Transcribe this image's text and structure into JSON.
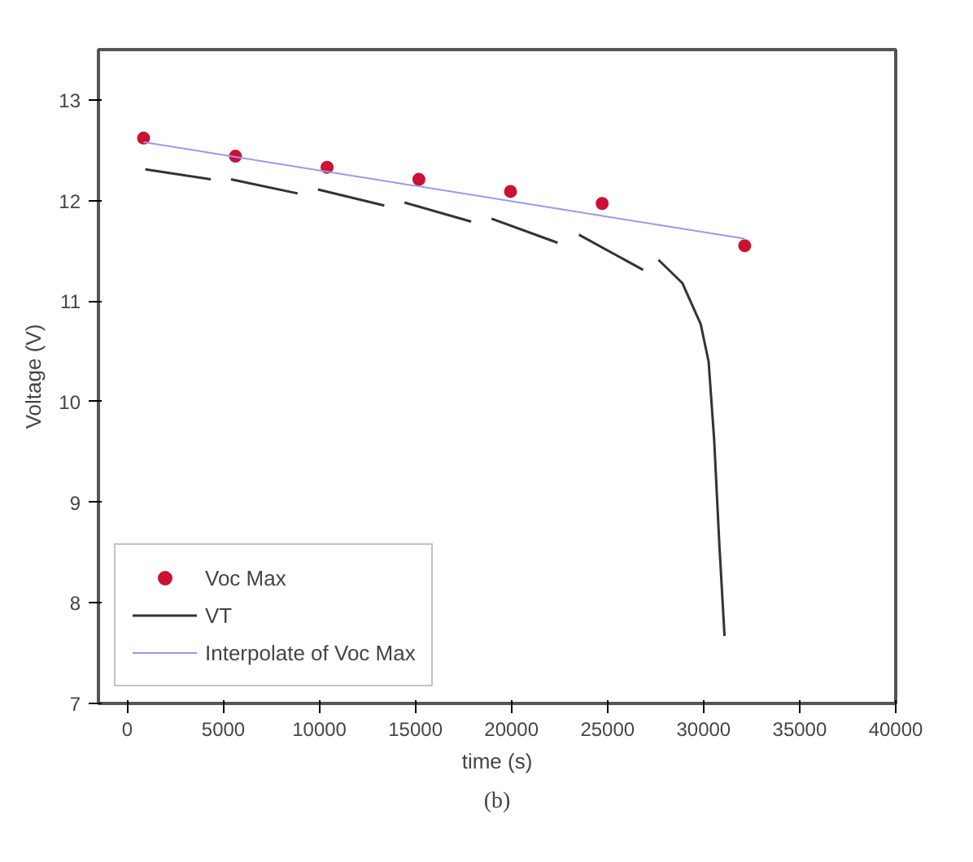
{
  "chart_data": {
    "type": "line",
    "xlabel": "time (s)",
    "ylabel": "Voltage (V)",
    "xlim": [
      -1500,
      40000
    ],
    "ylim": [
      7,
      13.5
    ],
    "xticks": [
      0,
      5000,
      10000,
      15000,
      20000,
      25000,
      30000,
      35000,
      40000
    ],
    "yticks": [
      7,
      8,
      9,
      10,
      11,
      12,
      13
    ],
    "grid": false,
    "legend": "bottom left",
    "annotations": [
      "(b)"
    ],
    "series": [
      {
        "name": "Voc Max",
        "type": "scatter",
        "marker": "circle",
        "color": "#cc1133",
        "x": [
          850,
          5630,
          10400,
          15180,
          19950,
          24720,
          32140
        ],
        "values": [
          12.62,
          12.44,
          12.33,
          12.21,
          12.09,
          11.97,
          11.55
        ]
      },
      {
        "name": "VT",
        "marker": "none",
        "color": "#333333",
        "x": [
          940,
          4350,
          4400,
          5400,
          8870,
          8900,
          9930,
          13380,
          13400,
          14430,
          17900,
          17950,
          18960,
          22400,
          22450,
          23510,
          26850,
          26900,
          27650,
          28890,
          29850,
          30260,
          30550,
          30820,
          31090
        ],
        "values": [
          12.31,
          12.21,
          null,
          12.21,
          12.07,
          null,
          12.11,
          11.95,
          null,
          11.98,
          11.79,
          null,
          11.82,
          11.58,
          null,
          11.66,
          11.31,
          null,
          11.41,
          11.18,
          10.77,
          10.4,
          9.62,
          8.58,
          7.67
        ]
      },
      {
        "name": "Interpolate of Voc Max",
        "marker": "none",
        "color": "#9999ee",
        "x": [
          850,
          32140
        ],
        "values": [
          12.58,
          11.62
        ]
      }
    ]
  }
}
